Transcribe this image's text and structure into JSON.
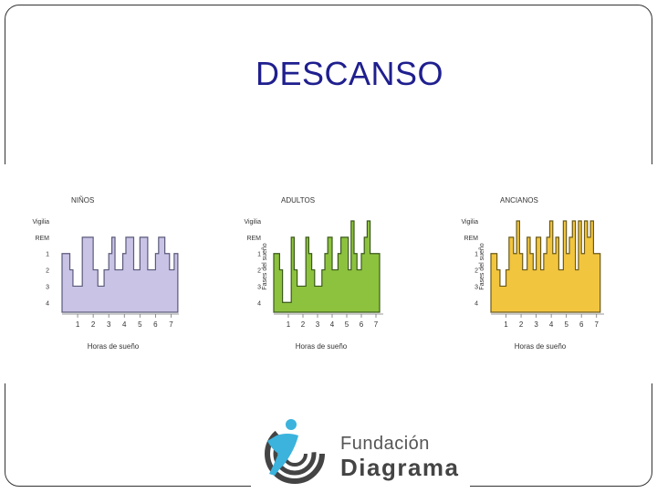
{
  "slide": {
    "title": "DESCANSO"
  },
  "chart_data": [
    {
      "type": "line",
      "title": "NIÑOS",
      "xlabel": "Horas de sueño",
      "ylabel": "",
      "y_categories": [
        "Vigilia",
        "REM",
        "1",
        "2",
        "3",
        "4"
      ],
      "x_ticks": [
        "1",
        "2",
        "3",
        "4",
        "5",
        "6",
        "7"
      ],
      "xlim": [
        0,
        7.5
      ],
      "color": "#c9c3e6",
      "stroke": "#5a5a7a",
      "series": [
        {
          "x": [
            0,
            0.5,
            0.7,
            0.9,
            1.0,
            1.3,
            1.5,
            1.7,
            2.0,
            2.3,
            2.5,
            2.7,
            3.0,
            3.2,
            3.4,
            3.7,
            3.9,
            4.1,
            4.4,
            4.6,
            4.8,
            5.0,
            5.3,
            5.5,
            5.7,
            6.0,
            6.2,
            6.4,
            6.6,
            6.9,
            7.2
          ],
          "y": [
            2,
            3,
            4,
            4,
            4,
            1,
            1,
            1,
            3,
            4,
            4,
            3,
            2,
            1,
            3,
            3,
            2,
            1,
            1,
            3,
            3,
            1,
            1,
            3,
            3,
            2,
            1,
            1,
            2,
            3,
            2
          ]
        }
      ]
    },
    {
      "type": "line",
      "title": "ADULTOS",
      "xlabel": "Horas de sueño",
      "ylabel": "Fases del sueño",
      "y_categories": [
        "Vigilia",
        "REM",
        "1",
        "2",
        "3",
        "4"
      ],
      "x_ticks": [
        "1",
        "2",
        "3",
        "4",
        "5",
        "6",
        "7"
      ],
      "xlim": [
        0,
        7.5
      ],
      "color": "#8dc23f",
      "stroke": "#3a5a1a",
      "series": [
        {
          "x": [
            0,
            0.4,
            0.6,
            0.8,
            1.0,
            1.2,
            1.4,
            1.6,
            1.9,
            2.2,
            2.4,
            2.6,
            2.8,
            3.0,
            3.3,
            3.5,
            3.7,
            4.0,
            4.2,
            4.4,
            4.6,
            4.9,
            5.1,
            5.3,
            5.5,
            5.7,
            6.0,
            6.2,
            6.4,
            6.6,
            7.0
          ],
          "y": [
            2,
            3,
            5,
            5,
            5,
            1,
            3,
            4,
            4,
            1,
            2,
            3,
            4,
            4,
            3,
            2,
            1,
            3,
            3,
            2,
            1,
            1,
            3,
            0,
            2,
            3,
            2,
            1,
            0,
            2,
            2
          ]
        }
      ]
    },
    {
      "type": "line",
      "title": "ANCIANOS",
      "xlabel": "Horas de sueño",
      "ylabel": "Fases del sueño",
      "y_categories": [
        "Vigilia",
        "REM",
        "1",
        "2",
        "3",
        "4"
      ],
      "x_ticks": [
        "1",
        "2",
        "3",
        "4",
        "5",
        "6",
        "7"
      ],
      "xlim": [
        0,
        7.5
      ],
      "color": "#f2c53f",
      "stroke": "#6a5a1a",
      "series": [
        {
          "x": [
            0,
            0.4,
            0.6,
            0.8,
            1.0,
            1.2,
            1.5,
            1.7,
            1.9,
            2.1,
            2.4,
            2.6,
            2.8,
            3.0,
            3.3,
            3.5,
            3.7,
            3.9,
            4.1,
            4.3,
            4.5,
            4.8,
            5.0,
            5.2,
            5.4,
            5.6,
            5.8,
            6.0,
            6.2,
            6.4,
            6.6,
            6.8,
            7.0
          ],
          "y": [
            2,
            3,
            4,
            4,
            3,
            1,
            2,
            0,
            2,
            3,
            1,
            2,
            3,
            1,
            3,
            2,
            1,
            0,
            2,
            1,
            3,
            0,
            2,
            1,
            0,
            3,
            0,
            2,
            0,
            1,
            0,
            2,
            2
          ]
        }
      ]
    }
  ],
  "logo": {
    "line1": "Fundación",
    "line2": "Diagrama"
  }
}
